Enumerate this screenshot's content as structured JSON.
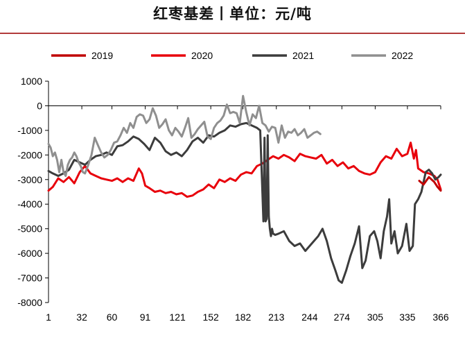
{
  "chart_data": {
    "type": "line",
    "title": "红枣基差丨单位：元/吨",
    "xlabel": "",
    "ylabel": "",
    "ylim": [
      -8000,
      1000
    ],
    "xlim": [
      1,
      366
    ],
    "yticks": [
      "1000",
      "0",
      "-1000",
      "-2000",
      "-3000",
      "-4000",
      "-5000",
      "-6000",
      "-7000",
      "-8000"
    ],
    "xticks": [
      "1",
      "32",
      "60",
      "91",
      "121",
      "152",
      "182",
      "213",
      "244",
      "274",
      "305",
      "335",
      "366"
    ],
    "legend_position": "top",
    "series": [
      {
        "name": "2019",
        "color": "#c00000",
        "x": [
          346,
          350,
          355,
          360,
          363,
          366
        ],
        "y": [
          -3050,
          -3200,
          -2900,
          -3100,
          -3300,
          -3450
        ]
      },
      {
        "name": "2020",
        "color": "#e8000b",
        "x": [
          1,
          5,
          10,
          15,
          20,
          25,
          30,
          35,
          40,
          45,
          50,
          55,
          60,
          65,
          70,
          75,
          80,
          85,
          88,
          91,
          95,
          100,
          105,
          110,
          115,
          120,
          125,
          130,
          135,
          140,
          145,
          150,
          155,
          160,
          165,
          170,
          175,
          180,
          185,
          190,
          195,
          200,
          205,
          210,
          215,
          220,
          225,
          230,
          235,
          240,
          245,
          250,
          255,
          260,
          265,
          270,
          275,
          280,
          285,
          290,
          295,
          300,
          305,
          310,
          315,
          320,
          325,
          330,
          335,
          338,
          341,
          343,
          345,
          350,
          355,
          360,
          363,
          366
        ],
        "y": [
          -3450,
          -3300,
          -2950,
          -3100,
          -2900,
          -3150,
          -2700,
          -2450,
          -2750,
          -2850,
          -2950,
          -3000,
          -3050,
          -2950,
          -3100,
          -2950,
          -3050,
          -2550,
          -2750,
          -3250,
          -3350,
          -3500,
          -3450,
          -3550,
          -3500,
          -3600,
          -3550,
          -3700,
          -3650,
          -3500,
          -3400,
          -3200,
          -3350,
          -3000,
          -3100,
          -2950,
          -3050,
          -2800,
          -2700,
          -2750,
          -2450,
          -2350,
          -2200,
          -2050,
          -2150,
          -2000,
          -2100,
          -2250,
          -1950,
          -2050,
          -2100,
          -2150,
          -2000,
          -2350,
          -2200,
          -2450,
          -2300,
          -2550,
          -2450,
          -2650,
          -2750,
          -2800,
          -2700,
          -2300,
          -2050,
          -2150,
          -1750,
          -2050,
          -1950,
          -1500,
          -2150,
          -1800,
          -2550,
          -2700,
          -2750,
          -2850,
          -3000,
          -3400
        ]
      },
      {
        "name": "2021",
        "color": "#3c3c3c",
        "x": [
          1,
          5,
          10,
          15,
          20,
          25,
          30,
          35,
          40,
          45,
          50,
          55,
          60,
          65,
          70,
          75,
          80,
          85,
          90,
          95,
          100,
          105,
          110,
          115,
          120,
          125,
          130,
          135,
          140,
          145,
          150,
          155,
          160,
          165,
          170,
          175,
          180,
          185,
          190,
          195,
          198,
          200,
          201,
          202,
          203,
          204,
          205,
          206,
          207,
          208,
          209,
          210,
          212,
          215,
          220,
          225,
          230,
          235,
          240,
          244,
          248,
          252,
          256,
          260,
          264,
          268,
          271,
          274,
          278,
          282,
          286,
          290,
          293,
          296,
          300,
          304,
          307,
          310,
          313,
          316,
          318,
          320,
          323,
          326,
          330,
          334,
          337,
          340,
          342,
          345,
          348,
          352,
          355,
          358,
          361,
          364,
          366
        ],
        "y": [
          -2650,
          -2750,
          -2850,
          -2750,
          -2600,
          -2200,
          -2300,
          -2400,
          -2200,
          -2050,
          -2000,
          -1900,
          -2000,
          -1650,
          -1600,
          -1450,
          -1250,
          -1350,
          -1550,
          -1800,
          -1300,
          -1500,
          -1850,
          -2000,
          -1900,
          -2050,
          -1800,
          -1450,
          -1300,
          -1500,
          -1200,
          -1250,
          -1100,
          -1000,
          -800,
          -850,
          -750,
          -700,
          -800,
          -900,
          -1000,
          -3500,
          -4700,
          -1300,
          -4700,
          -4600,
          -1200,
          -4500,
          -5000,
          -5300,
          -5000,
          -5200,
          -5250,
          -5200,
          -5100,
          -5500,
          -5700,
          -5600,
          -5900,
          -5700,
          -5500,
          -5300,
          -5000,
          -5500,
          -6200,
          -6700,
          -7100,
          -7200,
          -6700,
          -6100,
          -5600,
          -4900,
          -6600,
          -6300,
          -5300,
          -5100,
          -5500,
          -6200,
          -5100,
          -4500,
          -3800,
          -5600,
          -5100,
          -6000,
          -5700,
          -4800,
          -5900,
          -5700,
          -4000,
          -3800,
          -3500,
          -2700,
          -2600,
          -2750,
          -3000,
          -2900,
          -2800
        ]
      },
      {
        "name": "2022",
        "color": "#8f8f8f",
        "x": [
          1,
          3,
          5,
          7,
          9,
          11,
          13,
          15,
          17,
          19,
          21,
          23,
          25,
          27,
          29,
          31,
          33,
          35,
          38,
          41,
          44,
          47,
          50,
          53,
          56,
          59,
          62,
          65,
          68,
          71,
          74,
          77,
          80,
          83,
          86,
          89,
          92,
          95,
          98,
          101,
          104,
          107,
          110,
          113,
          116,
          119,
          122,
          125,
          128,
          131,
          134,
          137,
          140,
          143,
          146,
          149,
          152,
          155,
          158,
          161,
          164,
          167,
          170,
          173,
          176,
          179,
          182,
          185,
          188,
          191,
          194,
          197,
          200,
          203,
          206,
          209,
          212,
          215,
          218,
          221,
          224,
          227,
          230,
          233,
          236,
          239,
          242,
          245,
          248,
          251,
          254
        ],
        "y": [
          -1550,
          -1700,
          -2050,
          -1900,
          -2200,
          -2700,
          -2200,
          -2700,
          -2850,
          -2400,
          -2200,
          -2100,
          -1900,
          -2050,
          -2300,
          -2450,
          -2700,
          -2750,
          -2400,
          -2000,
          -1300,
          -1600,
          -1900,
          -2100,
          -2000,
          -1800,
          -1500,
          -1450,
          -1200,
          -900,
          -1100,
          -700,
          -900,
          -450,
          -350,
          -400,
          -700,
          -550,
          -100,
          -400,
          -900,
          -750,
          -550,
          -1000,
          -1200,
          -900,
          -1050,
          -1250,
          -900,
          -500,
          -1300,
          -1150,
          -950,
          -800,
          -650,
          -1250,
          -1350,
          -900,
          -700,
          -600,
          -400,
          50,
          -300,
          -250,
          -300,
          -700,
          400,
          -250,
          -800,
          -350,
          -500,
          0,
          -700,
          -800,
          -1050,
          -850,
          -900,
          -1500,
          -800,
          -1300,
          -1050,
          -1100,
          -950,
          -1200,
          -1100,
          -950,
          -1300,
          -1200,
          -1100,
          -1050,
          -1150
        ]
      }
    ]
  }
}
